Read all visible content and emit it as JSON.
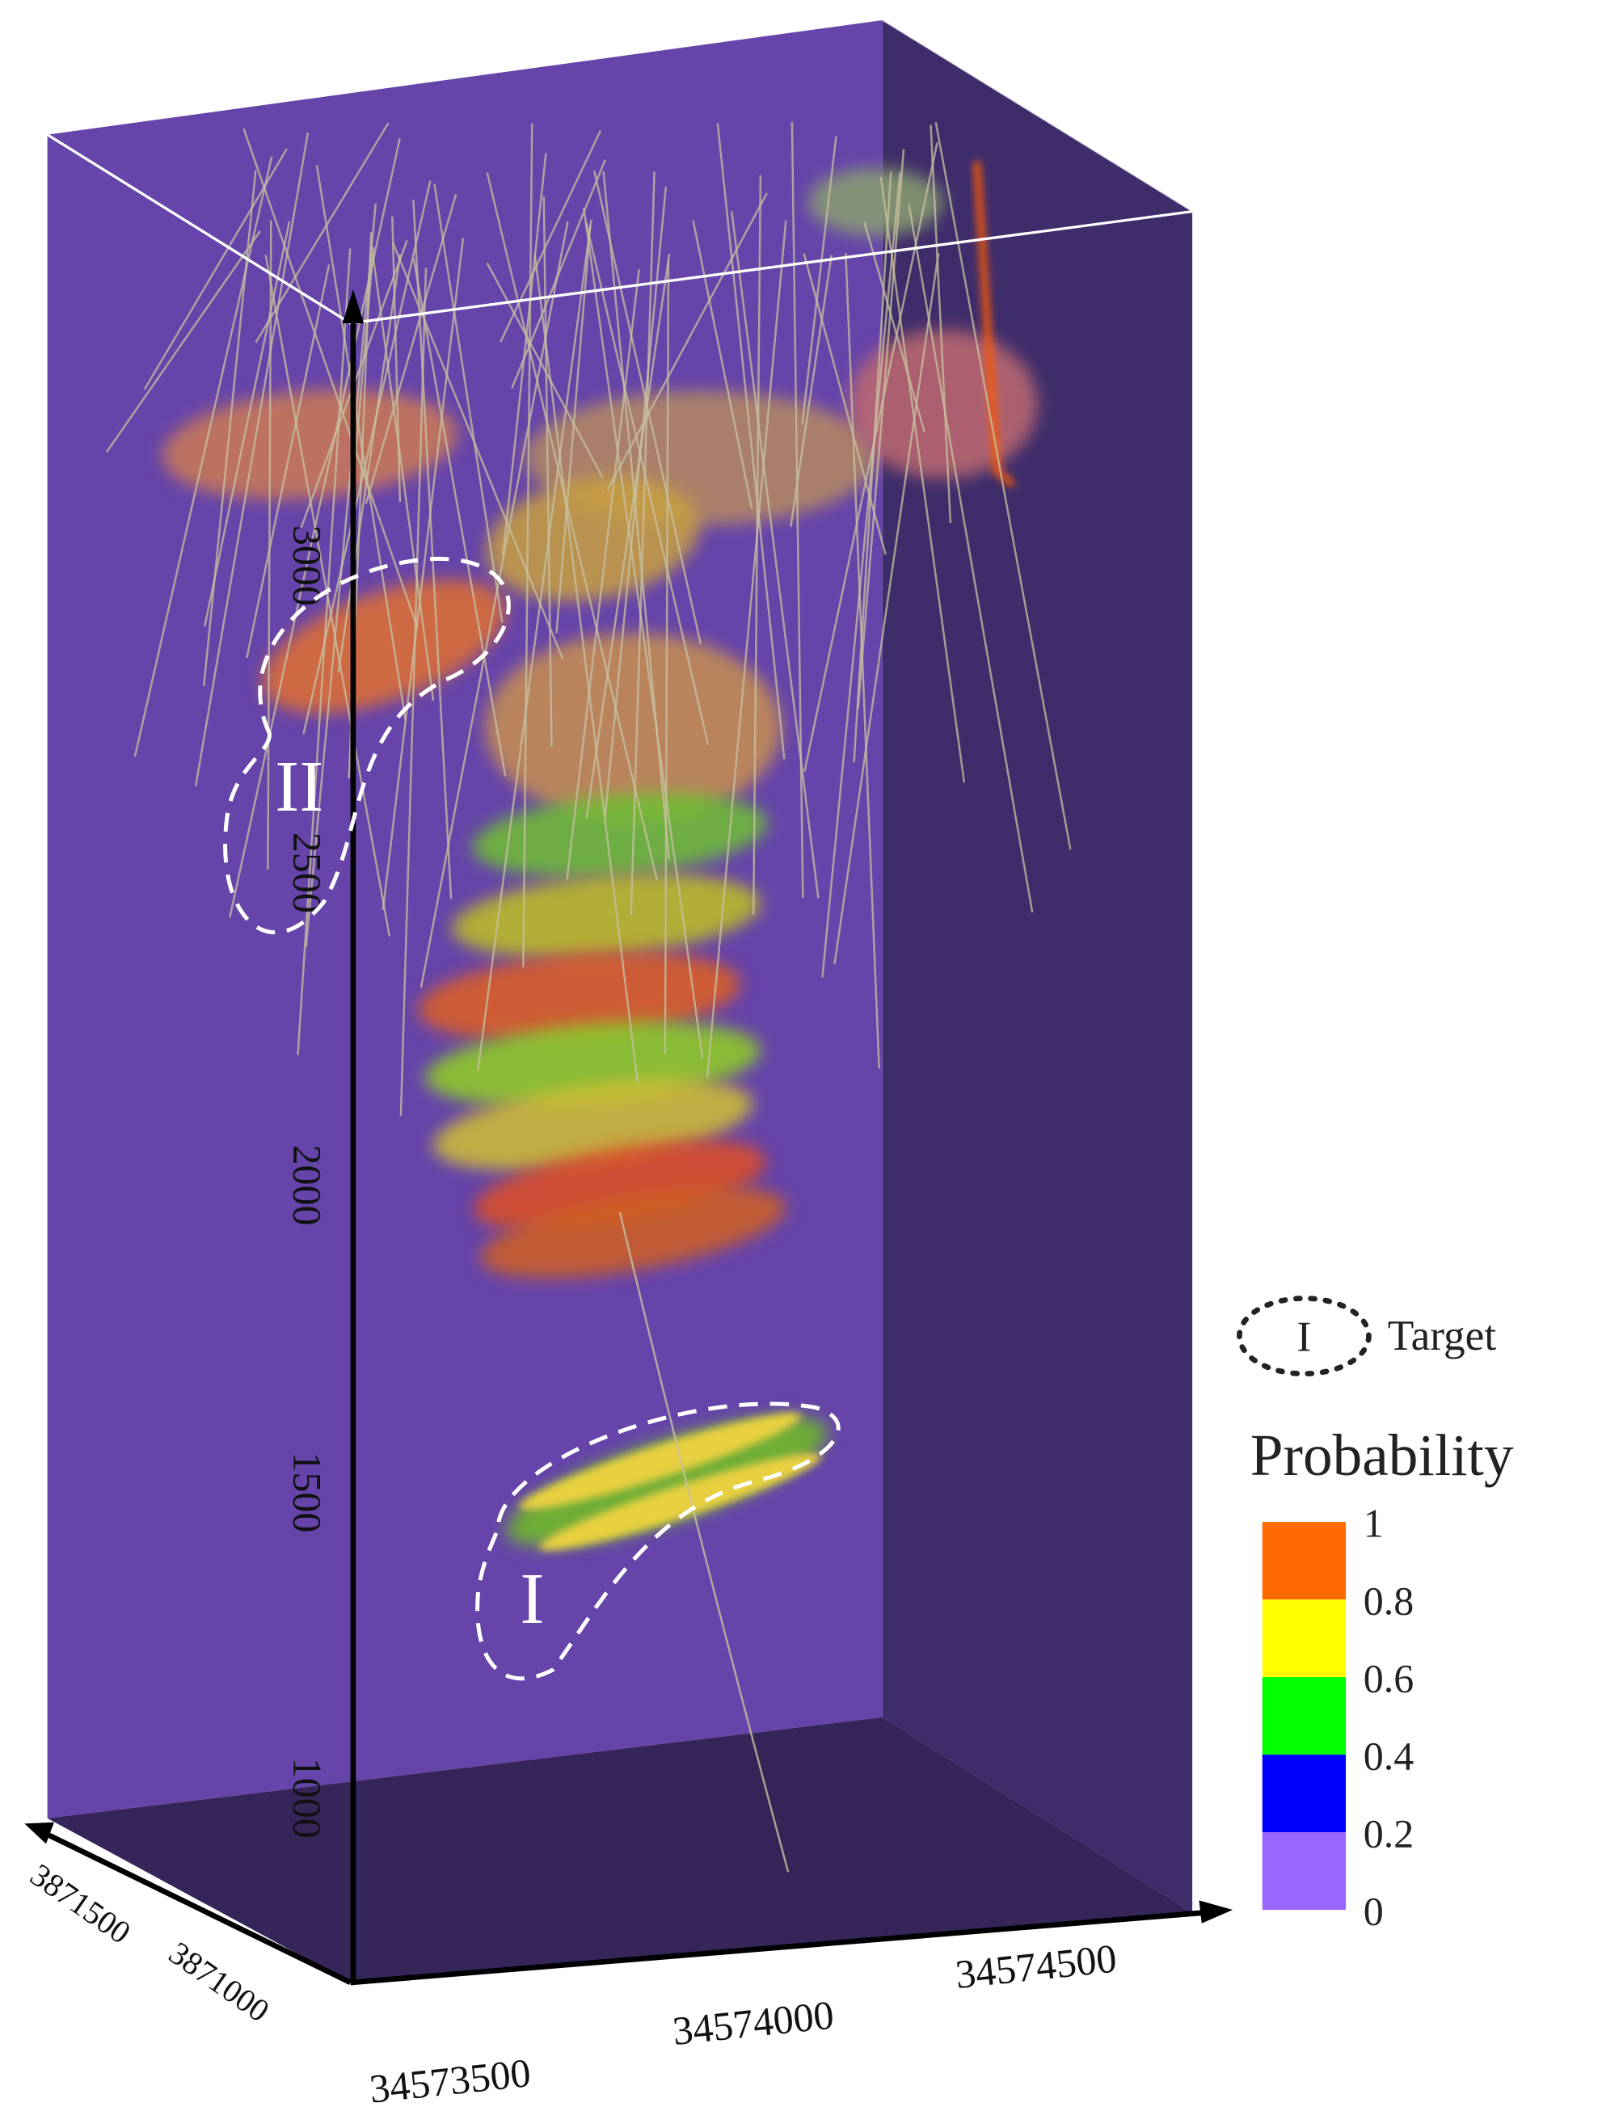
{
  "axes": {
    "vertical": [
      "3000",
      "2500",
      "2000",
      "1500",
      "1000"
    ],
    "depth": [
      "3871500",
      "3871000"
    ],
    "horizontal": [
      "34573500",
      "34574000",
      "34574500"
    ]
  },
  "targets": [
    "II",
    "I"
  ],
  "legend": {
    "symbol": "I",
    "label": "Target"
  },
  "colorbar": {
    "title": "Probability",
    "ticks": [
      "1",
      "0.8",
      "0.6",
      "0.4",
      "0.2",
      "0"
    ],
    "colors": [
      "#ff6a00",
      "#ffff00",
      "#00ff00",
      "#0000ff",
      "#9966ff"
    ]
  }
}
